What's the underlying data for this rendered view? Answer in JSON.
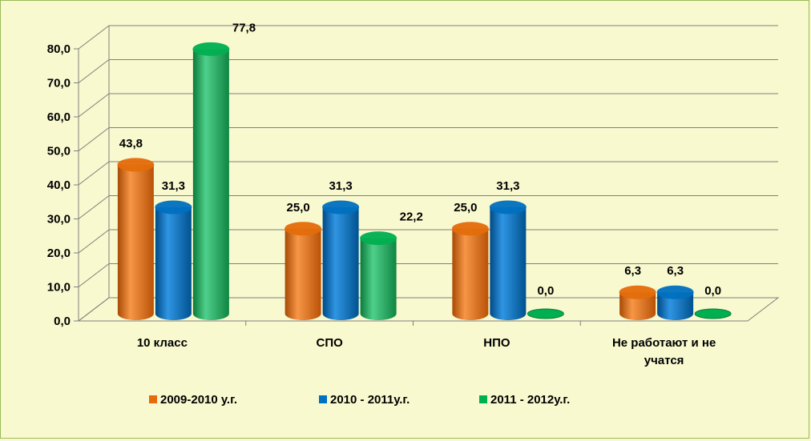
{
  "chart_data": {
    "type": "bar",
    "categories": [
      "10 класс",
      "СПО",
      "НПО",
      "Не работают и не учатся"
    ],
    "series": [
      {
        "name": "2009-2010 у.г.",
        "values": [
          43.8,
          25.0,
          25.0,
          6.3
        ],
        "labels": [
          "43,8",
          "25,0",
          "25,0",
          "6,3"
        ],
        "color": "#e46c0a"
      },
      {
        "name": "2010 - 2011у.г.",
        "values": [
          31.3,
          31.3,
          31.3,
          6.3
        ],
        "labels": [
          "31,3",
          "31,3",
          "31,3",
          "6,3"
        ],
        "color": "#0070c0"
      },
      {
        "name": "2011 - 2012у.г.",
        "values": [
          77.8,
          22.2,
          0.0,
          0.0
        ],
        "labels": [
          "77,8",
          "22,2",
          "0,0",
          "0,0"
        ],
        "color": "#00b050"
      }
    ],
    "yticks": [
      "0,0",
      "10,0",
      "20,0",
      "30,0",
      "40,0",
      "50,0",
      "60,0",
      "70,0",
      "80,0"
    ],
    "ylim": [
      0,
      80
    ],
    "grid": true,
    "legend_position": "bottom",
    "title": "",
    "xlabel": "",
    "ylabel": ""
  }
}
